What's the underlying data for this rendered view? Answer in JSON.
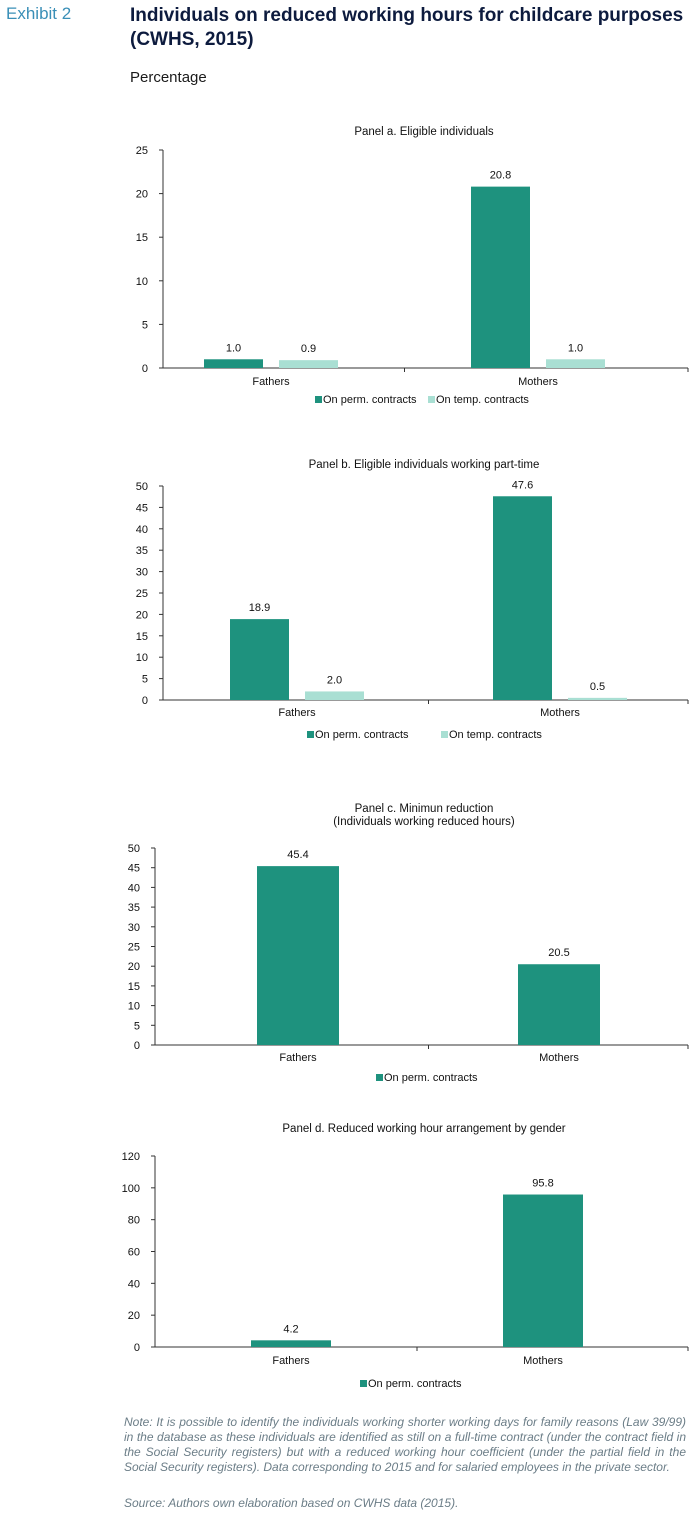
{
  "header": {
    "exhibit": "Exhibit 2",
    "title": "Individuals on reduced working hours for childcare purposes (CWHS, 2015)",
    "subtitle": "Percentage"
  },
  "colors": {
    "perm": "#1e927e",
    "temp": "#a9dfd3",
    "axis": "#333333"
  },
  "chart_data": [
    {
      "type": "bar",
      "title": "Panel a. Eligible individuals",
      "categories": [
        "Fathers",
        "Mothers"
      ],
      "series": [
        {
          "name": "On perm. contracts",
          "values": [
            1.0,
            20.8
          ],
          "labels": [
            "1.0",
            "20.8"
          ]
        },
        {
          "name": "On temp. contracts",
          "values": [
            0.9,
            1.0
          ],
          "labels": [
            "0.9",
            "1.0"
          ]
        }
      ],
      "ylim": [
        0,
        25
      ],
      "yticks": [
        0,
        5,
        10,
        15,
        20,
        25
      ],
      "legend": "bottom",
      "grid": false
    },
    {
      "type": "bar",
      "title": "Panel b. Eligible individuals working part-time",
      "categories": [
        "Fathers",
        "Mothers"
      ],
      "series": [
        {
          "name": "On perm. contracts",
          "values": [
            18.9,
            47.6
          ],
          "labels": [
            "18.9",
            "47.6"
          ]
        },
        {
          "name": "On temp. contracts",
          "values": [
            2.0,
            0.5
          ],
          "labels": [
            "2.0",
            "0.5"
          ]
        }
      ],
      "ylim": [
        0,
        50
      ],
      "yticks": [
        0,
        5,
        10,
        15,
        20,
        25,
        30,
        35,
        40,
        45,
        50
      ],
      "legend": "bottom",
      "grid": false
    },
    {
      "type": "bar",
      "title": "Panel c. Minimun reduction",
      "subtitle": "(Individuals working reduced hours)",
      "categories": [
        "Fathers",
        "Mothers"
      ],
      "series": [
        {
          "name": "On perm. contracts",
          "values": [
            45.4,
            20.5
          ],
          "labels": [
            "45.4",
            "20.5"
          ]
        }
      ],
      "ylim": [
        0,
        50
      ],
      "yticks": [
        0,
        5,
        10,
        15,
        20,
        25,
        30,
        35,
        40,
        45,
        50
      ],
      "legend": "bottom",
      "grid": false
    },
    {
      "type": "bar",
      "title": "Panel d. Reduced working hour arrangement by gender",
      "categories": [
        "Fathers",
        "Mothers"
      ],
      "series": [
        {
          "name": "On perm. contracts",
          "values": [
            4.2,
            95.8
          ],
          "labels": [
            "4.2",
            "95.8"
          ]
        }
      ],
      "ylim": [
        0,
        120
      ],
      "yticks": [
        0,
        20,
        40,
        60,
        80,
        100,
        120
      ],
      "legend": "bottom",
      "grid": false
    }
  ],
  "footer": {
    "note": "Note: It is possible to identify the individuals working shorter working days for family reasons (Law 39/99) in the database as these individuals are identified as still on a full-time contract (under the contract field in the Social Security registers) but with a reduced working hour coefficient (under the partial field in the Social Security registers). Data corresponding to 2015 and for salaried employees in the private sector.",
    "source": "Source: Authors own elaboration based on CWHS data (2015)."
  }
}
